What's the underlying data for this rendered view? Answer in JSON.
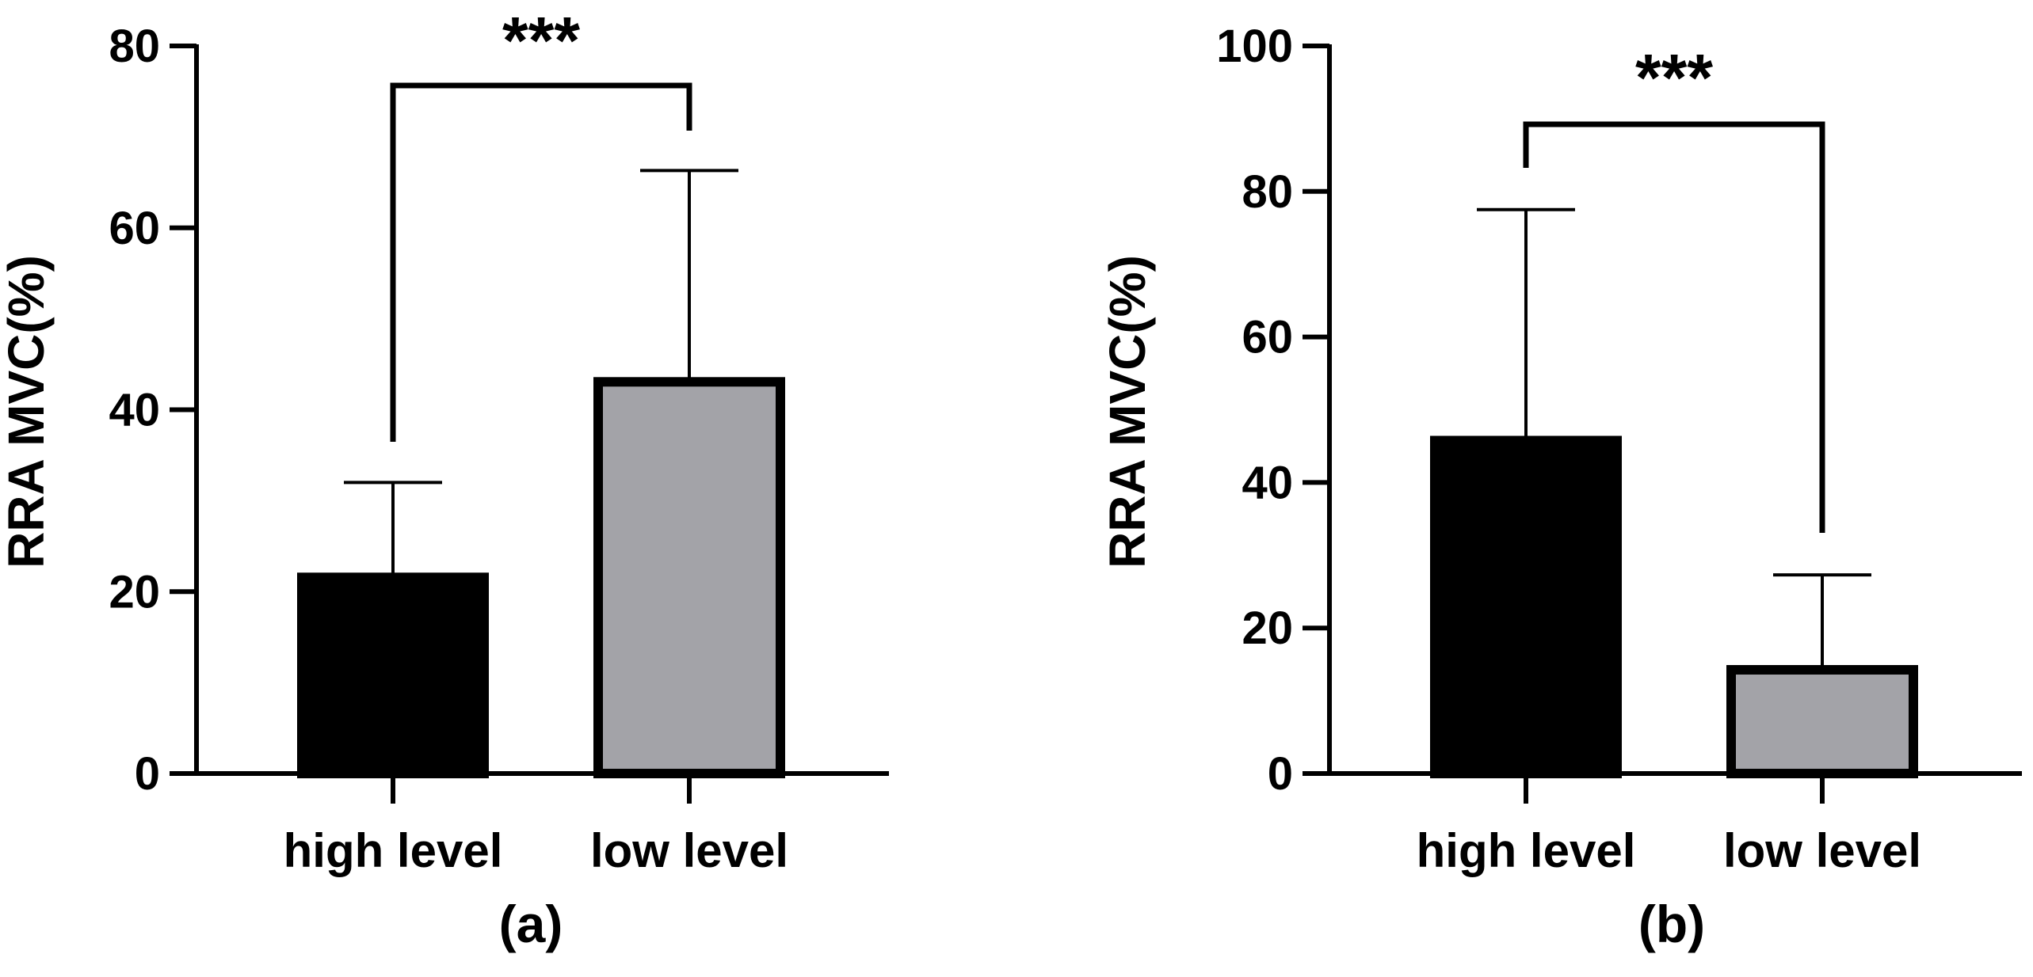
{
  "colors": {
    "axis": "#000000",
    "high_level_bar": "#000000",
    "low_level_bar": "#a3a3a8",
    "background": "#ffffff"
  },
  "chart_data": [
    {
      "type": "bar",
      "panel_label": "(a)",
      "title": "",
      "xlabel": "",
      "ylabel": "RRA MVC(%)",
      "ylim": [
        0,
        80
      ],
      "yticks": [
        0,
        20,
        40,
        60,
        80
      ],
      "tick_labels": [
        "0",
        "20",
        "40",
        "60",
        "80"
      ],
      "categories": [
        "high level",
        "low level"
      ],
      "values": [
        22,
        43.5
      ],
      "error_upper": [
        32,
        66.3
      ],
      "bar_colors": [
        "#000000",
        "#a3a3a8"
      ],
      "significance": {
        "text": "***",
        "between": [
          0,
          1
        ]
      },
      "grid": false,
      "legend": "none"
    },
    {
      "type": "bar",
      "panel_label": "(b)",
      "title": "",
      "xlabel": "",
      "ylabel": "RRA MVC(%)",
      "ylim": [
        0,
        100
      ],
      "yticks": [
        0,
        20,
        40,
        60,
        80,
        100
      ],
      "tick_labels": [
        "0",
        "20",
        "40",
        "60",
        "80",
        "100"
      ],
      "categories": [
        "high level",
        "low level"
      ],
      "values": [
        46.3,
        14.8
      ],
      "error_upper": [
        77.5,
        27.3
      ],
      "bar_colors": [
        "#000000",
        "#a3a3a8"
      ],
      "significance": {
        "text": "***",
        "between": [
          0,
          1
        ]
      },
      "grid": false,
      "legend": "none"
    }
  ]
}
